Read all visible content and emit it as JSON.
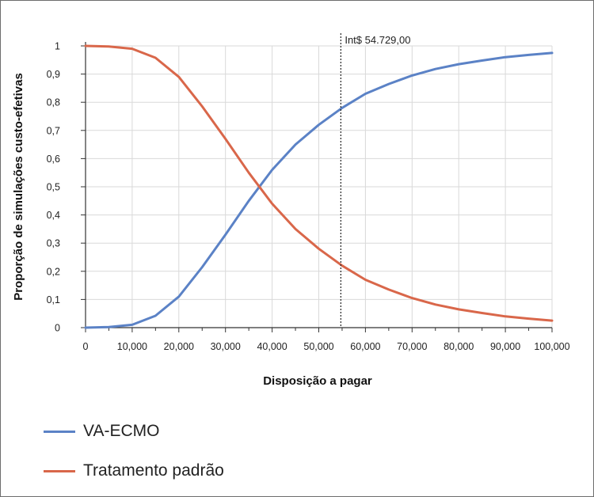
{
  "chart_data": {
    "type": "line",
    "title": "",
    "xlabel": "Disposição a pagar",
    "ylabel": "Proporção de simulações custo-efetivas",
    "xlim": [
      0,
      100000
    ],
    "ylim": [
      0,
      1
    ],
    "grid": true,
    "legend_position": "bottom-left",
    "x_ticks": [
      "0",
      "10,000",
      "20,000",
      "30,000",
      "40,000",
      "50,000",
      "60,000",
      "70,000",
      "80,000",
      "90,000",
      "100,000"
    ],
    "y_ticks": [
      "0",
      "0,1",
      "0,2",
      "0,3",
      "0,4",
      "0,5",
      "0,6",
      "0,7",
      "0,8",
      "0,9",
      "1"
    ],
    "x": [
      0,
      5000,
      10000,
      15000,
      20000,
      25000,
      30000,
      35000,
      40000,
      45000,
      50000,
      55000,
      60000,
      65000,
      70000,
      75000,
      80000,
      85000,
      90000,
      95000,
      100000
    ],
    "series": [
      {
        "name": "VA-ECMO",
        "color": "#5b82c6",
        "values": [
          0.0,
          0.002,
          0.01,
          0.042,
          0.11,
          0.215,
          0.33,
          0.45,
          0.56,
          0.65,
          0.72,
          0.78,
          0.83,
          0.865,
          0.895,
          0.918,
          0.935,
          0.948,
          0.96,
          0.968,
          0.975
        ]
      },
      {
        "name": "Tratamento padrão",
        "color": "#d9674a",
        "values": [
          1.0,
          0.998,
          0.99,
          0.958,
          0.89,
          0.785,
          0.67,
          0.55,
          0.44,
          0.35,
          0.28,
          0.22,
          0.17,
          0.135,
          0.105,
          0.082,
          0.065,
          0.052,
          0.04,
          0.032,
          0.025
        ]
      }
    ],
    "annotations": [
      {
        "label": "Int$ 54.729,00",
        "x": 54729,
        "style": "dotted-vertical-line"
      }
    ]
  }
}
